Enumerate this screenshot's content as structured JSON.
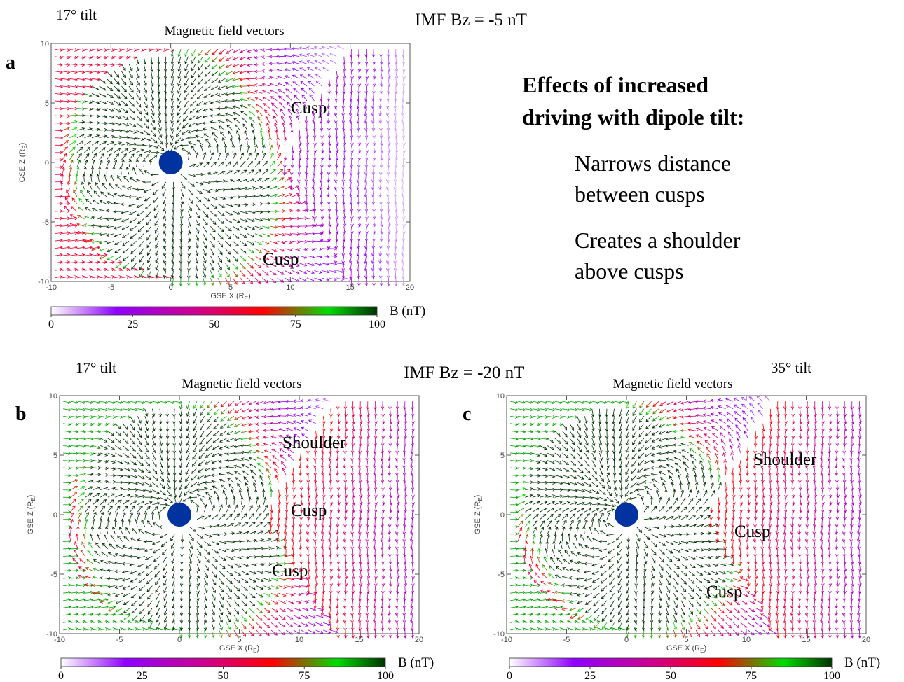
{
  "header": {
    "imf_top": "IMF Bz = -5 nT",
    "imf_bottom": "IMF Bz = -20 nT"
  },
  "notes": {
    "title": [
      "Effects of increased",
      "driving with dipole tilt:"
    ],
    "items": [
      "Narrows distance",
      "between cusps",
      "Creates a shoulder",
      "above cusps"
    ]
  },
  "chart_data": [
    {
      "type": "vector",
      "panel_label": "a",
      "tilt_label": "17° tilt",
      "title": "Magnetic field vectors",
      "x_label": [
        "GSE X (R",
        "E",
        ")"
      ],
      "y_label": [
        "GSE Z (R",
        "E",
        ")"
      ],
      "xlim": [
        -10,
        20
      ],
      "ylim": [
        -10,
        10
      ],
      "xticks": [
        -10,
        -5,
        0,
        5,
        10,
        15,
        20
      ],
      "yticks": [
        -10,
        -5,
        0,
        5,
        10
      ],
      "annotations": [
        "Cusp",
        "Cusp"
      ],
      "colorbar": {
        "label": "B (nT)",
        "lim": [
          0,
          100
        ],
        "ticks": [
          0,
          25,
          50,
          75,
          100
        ],
        "color_stops": [
          [
            0,
            "#ffffff"
          ],
          [
            20,
            "#8f00ff"
          ],
          [
            45,
            "#d0008a"
          ],
          [
            65,
            "#ff0000"
          ],
          [
            85,
            "#00dd00"
          ],
          [
            100,
            "#003300"
          ]
        ]
      }
    },
    {
      "type": "vector",
      "panel_label": "b",
      "tilt_label": "17° tilt",
      "title": "Magnetic field vectors",
      "x_label": [
        "GSE X (R",
        "E",
        ")"
      ],
      "y_label": [
        "GSE Z (R",
        "E",
        ")"
      ],
      "xlim": [
        -10,
        20
      ],
      "ylim": [
        -10,
        10
      ],
      "xticks": [
        -10,
        -5,
        0,
        5,
        10,
        15,
        20
      ],
      "yticks": [
        -10,
        -5,
        0,
        5,
        10
      ],
      "annotations": [
        "Shoulder",
        "Cusp",
        "Cusp"
      ],
      "colorbar": {
        "label": "B (nT)",
        "lim": [
          0,
          100
        ],
        "ticks": [
          0,
          25,
          50,
          75,
          100
        ],
        "color_stops": [
          [
            0,
            "#ffffff"
          ],
          [
            20,
            "#8f00ff"
          ],
          [
            45,
            "#d0008a"
          ],
          [
            65,
            "#ff0000"
          ],
          [
            85,
            "#00dd00"
          ],
          [
            100,
            "#003300"
          ]
        ]
      }
    },
    {
      "type": "vector",
      "panel_label": "c",
      "tilt_label": "35° tilt",
      "title": "Magnetic field vectors",
      "x_label": [
        "GSE X (R",
        "E",
        ")"
      ],
      "y_label": [
        "GSE Z (R",
        "E",
        ")"
      ],
      "xlim": [
        -10,
        20
      ],
      "ylim": [
        -10,
        10
      ],
      "xticks": [
        -10,
        -5,
        0,
        5,
        10,
        15,
        20
      ],
      "yticks": [
        -10,
        -5,
        0,
        5,
        10
      ],
      "annotations": [
        "Shoulder",
        "Cusp",
        "Cusp"
      ],
      "colorbar": {
        "label": "B (nT)",
        "lim": [
          0,
          100
        ],
        "ticks": [
          0,
          25,
          50,
          75,
          100
        ],
        "color_stops": [
          [
            0,
            "#ffffff"
          ],
          [
            20,
            "#8f00ff"
          ],
          [
            45,
            "#d0008a"
          ],
          [
            65,
            "#ff0000"
          ],
          [
            85,
            "#00dd00"
          ],
          [
            100,
            "#003300"
          ]
        ]
      }
    }
  ]
}
